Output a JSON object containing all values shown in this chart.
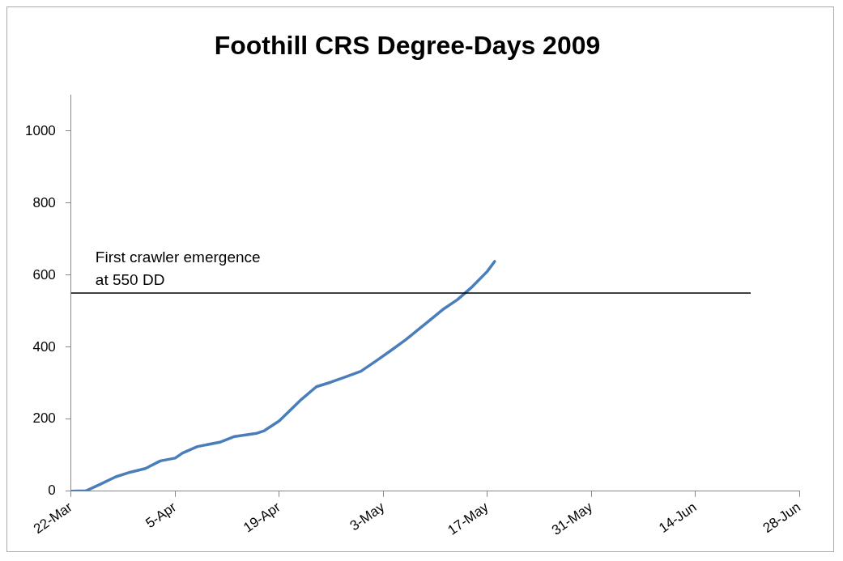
{
  "chart_data": {
    "type": "line",
    "title": "Foothill CRS Degree-Days 2009",
    "x": [
      "2009-03-22",
      "2009-03-24",
      "2009-03-26",
      "2009-03-28",
      "2009-03-30",
      "2009-04-01",
      "2009-04-03",
      "2009-04-05",
      "2009-04-06",
      "2009-04-08",
      "2009-04-11",
      "2009-04-13",
      "2009-04-16",
      "2009-04-17",
      "2009-04-19",
      "2009-04-22",
      "2009-04-24",
      "2009-04-26",
      "2009-04-28",
      "2009-04-30",
      "2009-05-02",
      "2009-05-04",
      "2009-05-06",
      "2009-05-09",
      "2009-05-11",
      "2009-05-13",
      "2009-05-15",
      "2009-05-17",
      "2009-05-18"
    ],
    "series": [
      {
        "color": "#4a7ebb",
        "values": [
          0,
          1,
          20,
          40,
          53,
          63,
          84,
          92,
          106,
          124,
          136,
          152,
          161,
          168,
          195,
          255,
          290,
          303,
          318,
          333,
          361,
          390,
          420,
          470,
          504,
          532,
          568,
          610,
          638
        ]
      }
    ],
    "xlim": [
      "2009-03-22",
      "2009-06-28"
    ],
    "xticks": [
      {
        "value": "2009-03-22",
        "label": "22-Mar"
      },
      {
        "value": "2009-04-05",
        "label": "5-Apr"
      },
      {
        "value": "2009-04-19",
        "label": "19-Apr"
      },
      {
        "value": "2009-05-03",
        "label": "3-May"
      },
      {
        "value": "2009-05-17",
        "label": "17-May"
      },
      {
        "value": "2009-05-31",
        "label": "31-May"
      },
      {
        "value": "2009-06-14",
        "label": "14-Jun"
      },
      {
        "value": "2009-06-28",
        "label": "28-Jun"
      }
    ],
    "ylim": [
      0,
      1100
    ],
    "yticks": [
      0,
      200,
      400,
      600,
      800,
      1000
    ],
    "ref_lines": [
      {
        "axis": "y",
        "value": 550,
        "label": "First crawler emergence\nat 550 DD",
        "color": "#000000"
      }
    ],
    "grid": false,
    "legend": false,
    "marker": "none",
    "line_style": "solid"
  }
}
